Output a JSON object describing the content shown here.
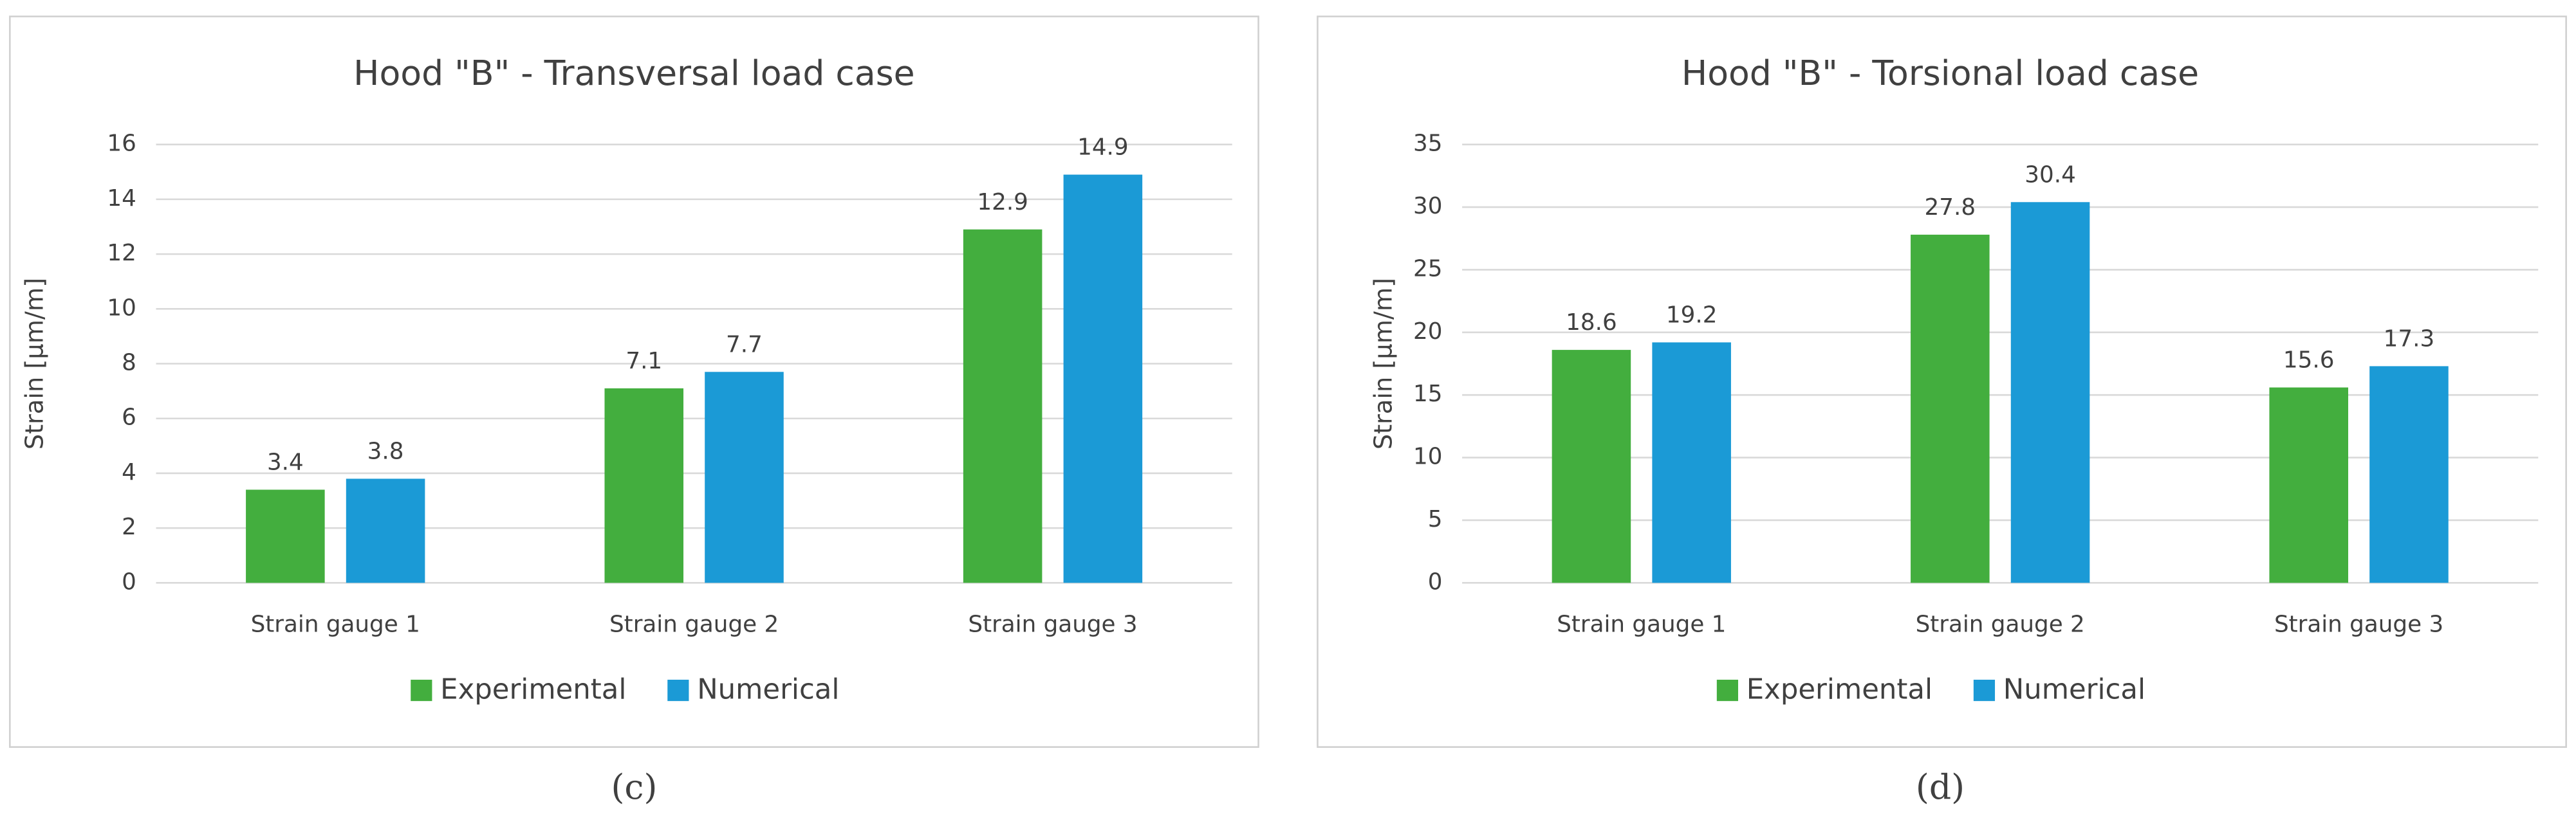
{
  "chart_data": [
    {
      "type": "bar",
      "title": "Hood \"B\" - Transversal load case",
      "y_label": "Strain [µm/m]",
      "categories": [
        "Strain gauge 1",
        "Strain gauge 2",
        "Strain gauge 3"
      ],
      "series": [
        {
          "name": "Experimental",
          "color": "#43ae3e",
          "values": [
            3.4,
            7.1,
            12.9
          ]
        },
        {
          "name": "Numerical",
          "color": "#1b9ad6",
          "values": [
            3.8,
            7.7,
            14.9
          ]
        }
      ],
      "ylim": [
        0,
        16
      ],
      "yticks": [
        0,
        2,
        4,
        6,
        8,
        10,
        12,
        14,
        16
      ],
      "grid": true,
      "legend": "bottom",
      "caption": "(c)"
    },
    {
      "type": "bar",
      "title": "Hood \"B\" - Torsional load case",
      "y_label": "Strain [µm/m]",
      "categories": [
        "Strain gauge 1",
        "Strain gauge 2",
        "Strain gauge 3"
      ],
      "series": [
        {
          "name": "Experimental",
          "color": "#43ae3e",
          "values": [
            18.6,
            27.8,
            15.6
          ]
        },
        {
          "name": "Numerical",
          "color": "#1b9ad6",
          "values": [
            19.2,
            30.4,
            17.3
          ]
        }
      ],
      "ylim": [
        0,
        35
      ],
      "yticks": [
        0,
        5,
        10,
        15,
        20,
        25,
        30,
        35
      ],
      "grid": true,
      "legend": "bottom",
      "caption": "(d)"
    }
  ]
}
